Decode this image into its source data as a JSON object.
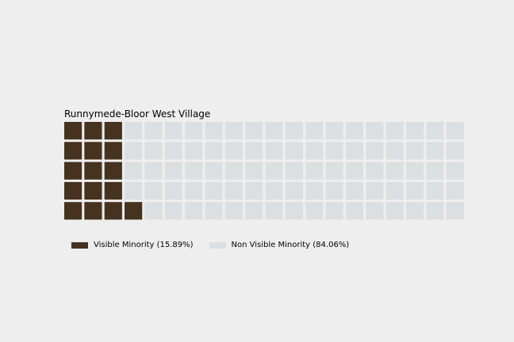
{
  "chart_data": {
    "type": "waffle",
    "title": "Runnymede-Bloor West Village",
    "rows": 5,
    "columns": 20,
    "fill_order": "column-wise, bottom to top",
    "categories": [
      {
        "name": "Visible Minority",
        "percent": 15.89,
        "cells": 16,
        "color": "#45321f",
        "legend_label": "Visible Minority (15.89%)"
      },
      {
        "name": "Non Visible Minority",
        "percent": 84.06,
        "cells": 84,
        "color": "#dcdfe1",
        "legend_label": "Non Visible Minority (84.06%)"
      }
    ],
    "legend_placement": "bottom-left",
    "background": "#eeeeee"
  }
}
